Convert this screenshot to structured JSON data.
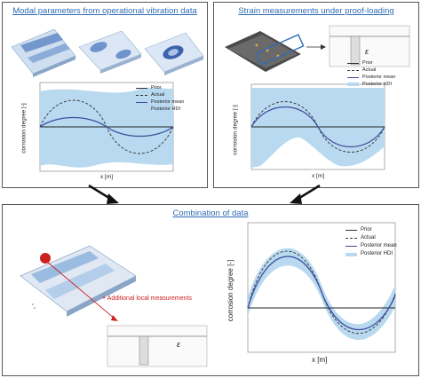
{
  "panels": {
    "top_left": {
      "title": "Modal parameters from operational vibration data"
    },
    "top_right": {
      "title": "Strain measurements under proof-loading"
    },
    "bottom": {
      "title": "Combination of data"
    }
  },
  "legend": {
    "prior": "Prior",
    "actual": "Actual",
    "posterior_mean": "Posterior mean",
    "posterior_hdi": "Posterior HDI"
  },
  "axes": {
    "ylabel": "corrosion degree [-]",
    "xlabel": "x [m]"
  },
  "strain_symbol": "ε",
  "annotation": "+ Additional local measurements",
  "colors": {
    "title_blue": "#2f6db5",
    "hdi_fill": "#b8d9ef",
    "mean_line": "#3d4c9c",
    "red": "#cc1f1f"
  }
}
